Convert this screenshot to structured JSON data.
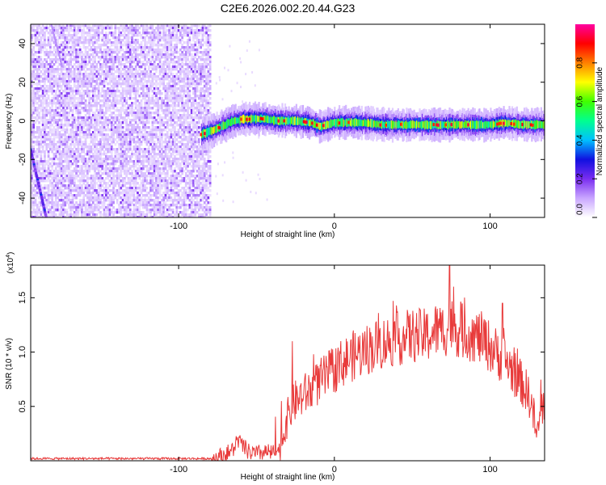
{
  "title": "C2E6.2026.002.20.44.G23",
  "chart_data": [
    {
      "type": "heatmap",
      "xlabel": "Height of straight line (km)",
      "ylabel": "Frequency (Hz)",
      "xlim": [
        -195,
        135
      ],
      "ylim": [
        -50,
        50
      ],
      "x_ticks": [
        -100,
        0,
        100
      ],
      "x_tick_labels": [
        "-100",
        "0",
        "100"
      ],
      "y_ticks": [
        -40,
        -20,
        0,
        20,
        40
      ],
      "y_tick_labels": [
        "-40",
        "-20",
        "0",
        "20",
        "40"
      ],
      "colorbar": {
        "label": "Normalized spectral amplitude",
        "range": [
          0,
          1
        ],
        "ticks": [
          0,
          0.2,
          0.4,
          0.6,
          0.8
        ],
        "tick_labels": [
          "0.0",
          "0.2",
          "0.4",
          "0.6",
          "0.8"
        ],
        "colormap": [
          "#ffffff",
          "#c9a6ff",
          "#7a2df0",
          "#1010e0",
          "#00c0ff",
          "#00ff90",
          "#40ff00",
          "#ffff00",
          "#ff8000",
          "#ff0000",
          "#ff00a0"
        ]
      },
      "noise_region_x": [
        -195,
        -80
      ],
      "diagonal_feature": [
        [
          -195,
          -15
        ],
        [
          -185,
          -50
        ]
      ],
      "signal_track": [
        [
          -85,
          -7
        ],
        [
          -78,
          -5
        ],
        [
          -72,
          -3
        ],
        [
          -65,
          0
        ],
        [
          -55,
          1
        ],
        [
          -45,
          1
        ],
        [
          -35,
          0
        ],
        [
          -25,
          0
        ],
        [
          -15,
          -1
        ],
        [
          -8,
          -3
        ],
        [
          0,
          -1
        ],
        [
          10,
          -1
        ],
        [
          20,
          -1
        ],
        [
          30,
          -2
        ],
        [
          40,
          -2
        ],
        [
          50,
          -2
        ],
        [
          60,
          -2
        ],
        [
          70,
          -2
        ],
        [
          80,
          -2
        ],
        [
          90,
          -2
        ],
        [
          100,
          -2
        ],
        [
          110,
          -1
        ],
        [
          120,
          -2
        ],
        [
          135,
          -2
        ]
      ]
    },
    {
      "type": "line",
      "xlabel": "Height of straight line (km)",
      "ylabel": "SNR (10 * v/v)",
      "y_multiplier": "(x10",
      "y_multiplier_exp": "4",
      "y_multiplier_close": ")",
      "xlim": [
        -195,
        135
      ],
      "ylim": [
        0,
        1.8
      ],
      "x_ticks": [
        -100,
        0,
        100
      ],
      "x_tick_labels": [
        "-100",
        "0",
        "100"
      ],
      "y_ticks": [
        0.5,
        1.0,
        1.5
      ],
      "y_tick_labels": [
        "0.5",
        "1.0",
        "1.5"
      ],
      "color": "#e83a3a",
      "series": [
        {
          "name": "SNR",
          "x": [
            -195,
            -180,
            -160,
            -140,
            -120,
            -100,
            -90,
            -80,
            -75,
            -70,
            -65,
            -62,
            -60,
            -55,
            -50,
            -45,
            -40,
            -35,
            -32,
            -30,
            -27,
            -25,
            -20,
            -15,
            -10,
            -5,
            0,
            5,
            10,
            20,
            30,
            40,
            50,
            60,
            65,
            70,
            75,
            80,
            85,
            90,
            95,
            100,
            105,
            110,
            115,
            118,
            120,
            125,
            128,
            130,
            133,
            135
          ],
          "y": [
            0.02,
            0.02,
            0.02,
            0.02,
            0.02,
            0.02,
            0.02,
            0.02,
            0.03,
            0.06,
            0.1,
            0.2,
            0.15,
            0.08,
            0.06,
            0.08,
            0.07,
            0.1,
            0.3,
            0.4,
            0.5,
            0.55,
            0.6,
            0.65,
            0.72,
            0.78,
            0.84,
            0.9,
            0.95,
            1.02,
            1.08,
            1.12,
            1.15,
            1.15,
            1.2,
            1.2,
            1.25,
            1.2,
            1.18,
            1.15,
            1.12,
            1.05,
            0.98,
            0.92,
            0.82,
            0.75,
            0.72,
            0.6,
            0.42,
            0.2,
            0.5,
            0.48
          ]
        }
      ],
      "spikes": [
        [
          -27,
          1.1
        ],
        [
          74,
          1.82
        ],
        [
          108,
          1.45
        ],
        [
          -34,
          0.55
        ]
      ]
    }
  ]
}
